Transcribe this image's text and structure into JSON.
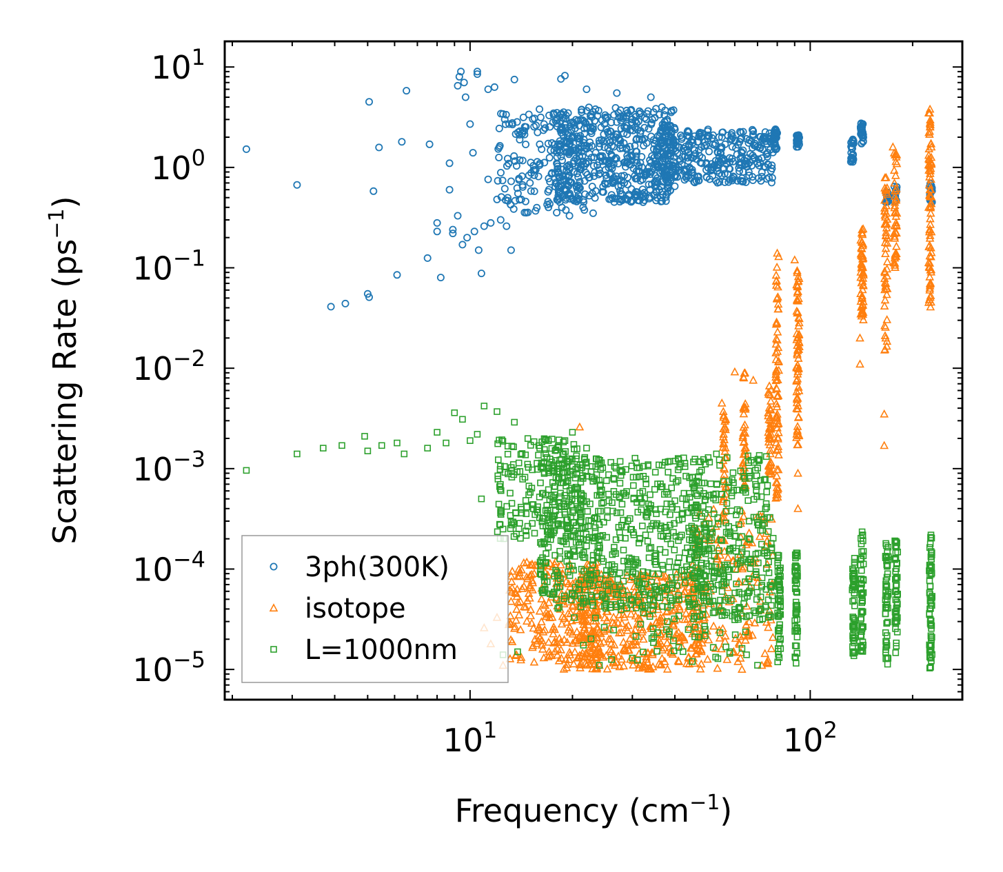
{
  "chart_data": {
    "type": "scatter",
    "title": "",
    "xlabel": "Frequency (cm",
    "xlabel_sup": "−1",
    "xlabel_end": ")",
    "ylabel": "Scattering Rate (ps",
    "ylabel_sup": "−1",
    "ylabel_end": ")",
    "xscale": "log",
    "yscale": "log",
    "xlim": [
      1.9,
      280
    ],
    "ylim": [
      5e-06,
      18
    ],
    "grid": false,
    "legend_position": "lower-left",
    "x_ticks": [
      {
        "value": 10,
        "base": "10",
        "exp": "1"
      },
      {
        "value": 100,
        "base": "10",
        "exp": "2"
      }
    ],
    "y_ticks": [
      {
        "value": 10,
        "base": "10",
        "exp": "1"
      },
      {
        "value": 1,
        "base": "10",
        "exp": "0"
      },
      {
        "value": 0.1,
        "base": "10",
        "exp": "−1"
      },
      {
        "value": 0.01,
        "base": "10",
        "exp": "−2"
      },
      {
        "value": 0.001,
        "base": "10",
        "exp": "−3"
      },
      {
        "value": 0.0001,
        "base": "10",
        "exp": "−4"
      },
      {
        "value": 1e-05,
        "base": "10",
        "exp": "−5"
      }
    ],
    "series": [
      {
        "name": "3ph(300K)",
        "marker": "circle",
        "color": "#1f77b4",
        "points": [
          [
            2.2,
            1.52
          ],
          [
            3.1,
            0.67
          ],
          [
            3.9,
            0.041
          ],
          [
            4.3,
            0.044
          ],
          [
            5.0,
            0.055
          ],
          [
            5.05,
            0.051
          ],
          [
            5.05,
            4.5
          ],
          [
            5.2,
            0.58
          ],
          [
            5.4,
            1.58
          ],
          [
            6.1,
            0.085
          ],
          [
            6.3,
            1.8
          ],
          [
            6.5,
            5.8
          ],
          [
            7.5,
            0.125
          ],
          [
            7.6,
            1.7
          ],
          [
            8.0,
            0.28
          ],
          [
            8.0,
            0.23
          ],
          [
            8.2,
            0.08
          ],
          [
            8.7,
            1.1
          ],
          [
            8.7,
            0.6
          ],
          [
            8.9,
            0.24
          ],
          [
            8.9,
            0.22
          ],
          [
            9.2,
            0.33
          ],
          [
            9.2,
            6.5
          ],
          [
            9.3,
            8.0
          ],
          [
            9.4,
            9.0
          ],
          [
            9.5,
            0.17
          ],
          [
            9.6,
            7.0
          ],
          [
            9.7,
            5.0
          ],
          [
            9.8,
            0.2
          ],
          [
            10.0,
            2.7
          ],
          [
            10.2,
            1.4
          ],
          [
            10.3,
            0.23
          ],
          [
            10.5,
            9.0
          ],
          [
            10.5,
            8.5
          ],
          [
            10.6,
            0.15
          ],
          [
            10.8,
            0.088
          ],
          [
            11.0,
            0.26
          ],
          [
            11.3,
            6.0
          ],
          [
            11.3,
            0.76
          ],
          [
            11.5,
            0.28
          ],
          [
            11.8,
            6.3
          ],
          [
            12.0,
            0.48
          ],
          [
            12.3,
            0.3
          ],
          [
            12.5,
            3.4
          ],
          [
            12.8,
            0.26
          ],
          [
            13.2,
            0.15
          ],
          [
            13.5,
            7.5
          ],
          [
            14.0,
            2.3
          ],
          [
            15.0,
            0.7
          ],
          [
            16.0,
            3.8
          ],
          [
            17.0,
            0.4
          ],
          [
            18.0,
            3.5
          ],
          [
            18.5,
            7.6
          ],
          [
            19.0,
            8.2
          ],
          [
            19.6,
            0.33
          ],
          [
            20.0,
            2.0
          ],
          [
            21.5,
            0.4
          ],
          [
            22.0,
            6.0
          ],
          [
            23.0,
            0.35
          ],
          [
            24.0,
            1.6
          ],
          [
            26.0,
            2.8
          ],
          [
            27.0,
            5.5
          ],
          [
            28.0,
            0.47
          ],
          [
            30.0,
            3.0
          ],
          [
            32.0,
            0.5
          ],
          [
            34.0,
            5.0
          ],
          [
            36.0,
            0.6
          ],
          [
            38.0,
            2.6
          ],
          [
            40.0,
            0.8
          ],
          [
            42.0,
            2.0
          ],
          [
            45.0,
            0.9
          ],
          [
            48.0,
            2.2
          ],
          [
            52.0,
            1.0
          ],
          [
            55.0,
            2.0
          ],
          [
            58.0,
            0.75
          ],
          [
            62.0,
            1.8
          ],
          [
            66.0,
            0.9
          ],
          [
            70.0,
            1.6
          ],
          [
            75.0,
            1.4
          ],
          [
            80.0,
            2.2
          ],
          [
            92.0,
            1.9
          ],
          [
            132.0,
            1.4
          ],
          [
            142.0,
            2.5
          ],
          [
            168.0,
            0.5
          ],
          [
            178.0,
            0.55
          ],
          [
            225.0,
            0.55
          ]
        ],
        "clusters": [
          {
            "x_range": [
              12,
              22
            ],
            "y_range": [
              0.35,
              3.5
            ],
            "count": 180
          },
          {
            "x_range": [
              18,
              40
            ],
            "y_range": [
              0.45,
              4.0
            ],
            "count": 520
          },
          {
            "x_range": [
              35,
              78
            ],
            "y_range": [
              0.7,
              2.4
            ],
            "count": 320
          }
        ],
        "columns": [
          {
            "x": 79,
            "y_range": [
              1.5,
              2.4
            ],
            "count": 30
          },
          {
            "x": 92,
            "y_range": [
              1.6,
              2.1
            ],
            "count": 25
          },
          {
            "x": 133,
            "y_range": [
              1.1,
              1.9
            ],
            "count": 25
          },
          {
            "x": 142,
            "y_range": [
              1.7,
              2.8
            ],
            "count": 25
          },
          {
            "x": 168,
            "y_range": [
              0.45,
              0.6
            ],
            "count": 12
          },
          {
            "x": 178,
            "y_range": [
              0.45,
              0.65
            ],
            "count": 12
          },
          {
            "x": 226,
            "y_range": [
              0.45,
              0.7
            ],
            "count": 15
          }
        ]
      },
      {
        "name": "isotope",
        "marker": "triangle",
        "color": "#ff7f0e",
        "points": [
          [
            11.0,
            2.6e-05
          ],
          [
            11.5,
            1.8e-05
          ],
          [
            12.0,
            3.3e-05
          ],
          [
            12.5,
            1.1e-05
          ],
          [
            13.0,
            2.8e-05
          ],
          [
            21.0,
            0.0026
          ],
          [
            22.0,
            3e-05
          ],
          [
            24.0,
            1.1e-05
          ],
          [
            55.0,
            0.0045
          ],
          [
            60.0,
            0.0092
          ],
          [
            68.0,
            0.0076
          ],
          [
            80.0,
            0.14
          ],
          [
            90.0,
            0.12
          ],
          [
            92.0,
            0.058
          ],
          [
            92.0,
            0.0004
          ],
          [
            92.0,
            0.0009
          ],
          [
            140.0,
            0.02
          ],
          [
            140.0,
            0.011
          ],
          [
            142.0,
            0.24
          ],
          [
            165.0,
            0.0035
          ],
          [
            165.0,
            0.0017
          ],
          [
            175.0,
            1.6
          ],
          [
            225.0,
            3.8
          ]
        ],
        "clusters": [
          {
            "x_range": [
              13,
              24
            ],
            "y_range": [
              1e-05,
              0.00012
            ],
            "count": 260
          },
          {
            "x_range": [
              20,
              48
            ],
            "y_range": [
              1e-05,
              9e-05
            ],
            "count": 420
          },
          {
            "x_range": [
              45,
              78
            ],
            "y_range": [
              1e-05,
              0.0004
            ],
            "count": 160
          }
        ],
        "columns": [
          {
            "x": 56,
            "y_range": [
              0.0003,
              0.004
            ],
            "count": 35
          },
          {
            "x": 64,
            "y_range": [
              0.0006,
              0.009
            ],
            "count": 40
          },
          {
            "x": 76,
            "y_range": [
              0.0008,
              0.007
            ],
            "count": 45
          },
          {
            "x": 80,
            "y_range": [
              0.0005,
              0.14
            ],
            "count": 70
          },
          {
            "x": 92,
            "y_range": [
              0.0015,
              0.1
            ],
            "count": 70
          },
          {
            "x": 142,
            "y_range": [
              0.03,
              0.25
            ],
            "count": 55
          },
          {
            "x": 167,
            "y_range": [
              0.015,
              0.8
            ],
            "count": 55
          },
          {
            "x": 178,
            "y_range": [
              0.1,
              1.5
            ],
            "count": 45
          },
          {
            "x": 225,
            "y_range": [
              0.04,
              3.5
            ],
            "count": 80
          }
        ]
      },
      {
        "name": "L=1000nm",
        "marker": "square",
        "color": "#2ca02c",
        "points": [
          [
            2.2,
            0.00096
          ],
          [
            3.1,
            0.0014
          ],
          [
            3.7,
            0.0016
          ],
          [
            4.2,
            0.0017
          ],
          [
            4.9,
            0.0021
          ],
          [
            5.0,
            0.0015
          ],
          [
            5.5,
            0.0017
          ],
          [
            6.1,
            0.0018
          ],
          [
            6.4,
            0.0014
          ],
          [
            7.5,
            0.0016
          ],
          [
            8.0,
            0.0023
          ],
          [
            8.5,
            0.0018
          ],
          [
            9.0,
            0.0036
          ],
          [
            9.5,
            0.0031
          ],
          [
            10.0,
            0.0019
          ],
          [
            10.5,
            0.0022
          ],
          [
            11.0,
            0.0042
          ],
          [
            10.8,
            0.0005
          ],
          [
            12.0,
            0.0037
          ],
          [
            12.5,
            0.00025
          ],
          [
            13.5,
            0.0029
          ],
          [
            17.0,
            0.0019
          ],
          [
            19.0,
            0.0019
          ],
          [
            20.0,
            0.0023
          ],
          [
            22.0,
            0.0016
          ],
          [
            12.5,
            1.4e-05
          ],
          [
            13.8,
            1.5e-05
          ],
          [
            24.0,
            1.1e-05
          ],
          [
            30.0,
            1.3e-05
          ],
          [
            45.0,
            1.2e-05
          ],
          [
            58.0,
            1.5e-05
          ],
          [
            65.0,
            1.4e-05
          ],
          [
            70.0,
            1.1e-05
          ]
        ],
        "clusters": [
          {
            "x_range": [
              12,
              22
            ],
            "y_range": [
              0.0002,
              0.002
            ],
            "count": 200
          },
          {
            "x_range": [
              16,
              50
            ],
            "y_range": [
              4e-05,
              0.0013
            ],
            "count": 650
          },
          {
            "x_range": [
              45,
              78
            ],
            "y_range": [
              3e-05,
              0.0014
            ],
            "count": 300
          },
          {
            "x_range": [
              20,
              70
            ],
            "y_range": [
              1.2e-05,
              6e-05
            ],
            "count": 70
          }
        ],
        "columns": [
          {
            "x": 81,
            "y_range": [
              1.1e-05,
              0.00015
            ],
            "count": 55
          },
          {
            "x": 91,
            "y_range": [
              1.1e-05,
              0.00015
            ],
            "count": 55
          },
          {
            "x": 134,
            "y_range": [
              1.3e-05,
              0.00013
            ],
            "count": 50
          },
          {
            "x": 142,
            "y_range": [
              1.5e-05,
              0.00025
            ],
            "count": 55
          },
          {
            "x": 168,
            "y_range": [
              1.1e-05,
              0.00018
            ],
            "count": 50
          },
          {
            "x": 179,
            "y_range": [
              1.1e-05,
              0.0002
            ],
            "count": 50
          },
          {
            "x": 226,
            "y_range": [
              1e-05,
              0.00022
            ],
            "count": 60
          }
        ]
      }
    ]
  }
}
